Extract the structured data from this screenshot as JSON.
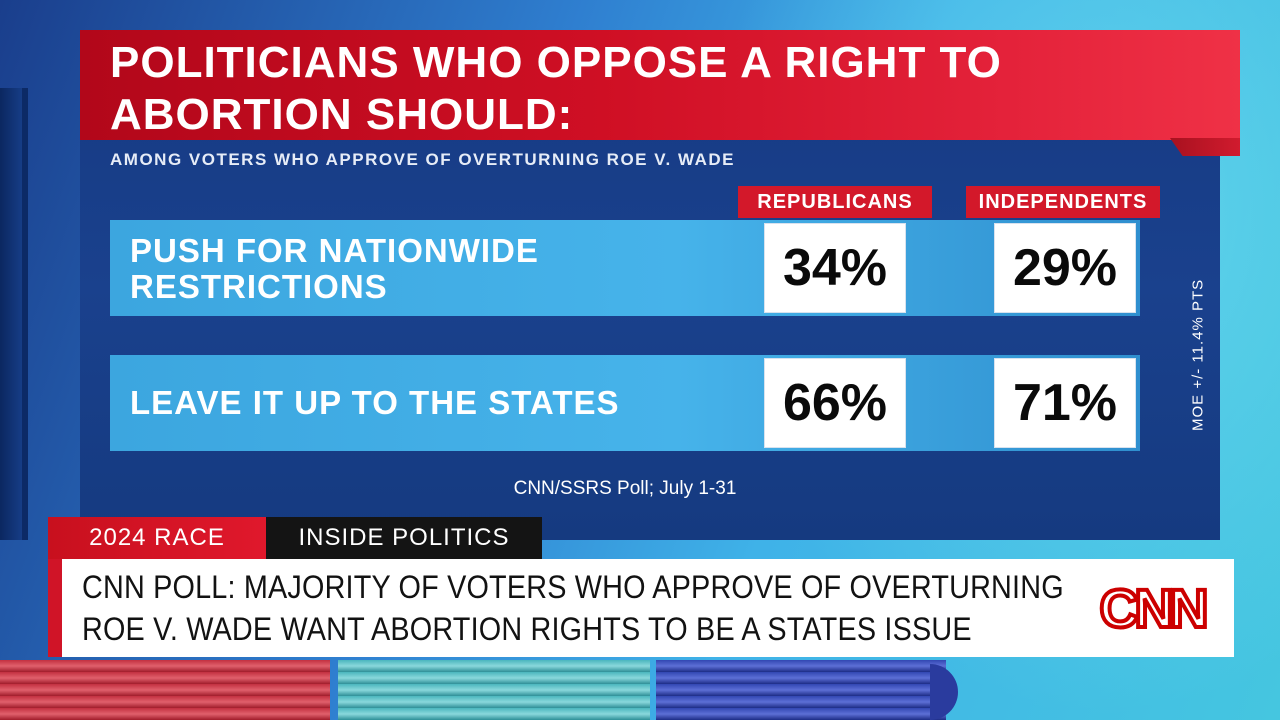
{
  "graphic": {
    "title": "POLITICIANS WHO OPPOSE A RIGHT TO ABORTION SHOULD:",
    "subtitle": "AMONG VOTERS WHO APPROVE OF OVERTURNING ROE V. WADE",
    "columns": [
      "REPUBLICANS",
      "INDEPENDENTS"
    ],
    "rows": [
      {
        "label": "PUSH FOR NATIONWIDE RESTRICTIONS",
        "values": [
          "34%",
          "29%"
        ]
      },
      {
        "label": "LEAVE IT UP TO THE STATES",
        "values": [
          "66%",
          "71%"
        ]
      }
    ],
    "moe": "MOE +/- 11.4% PTS",
    "source": "CNN/SSRS Poll; July 1-31"
  },
  "lower_third": {
    "tag_primary": "2024 RACE",
    "tag_secondary": "INSIDE POLITICS",
    "headline": "CNN POLL: MAJORITY OF VOTERS WHO APPROVE OF OVERTURNING ROE V. WADE WANT ABORTION RIGHTS TO BE A STATES ISSUE",
    "logo": "CNN"
  },
  "colors": {
    "accent_red": "#d3182a",
    "board_blue": "#173c86",
    "bar_blue": "#46b3ea"
  }
}
